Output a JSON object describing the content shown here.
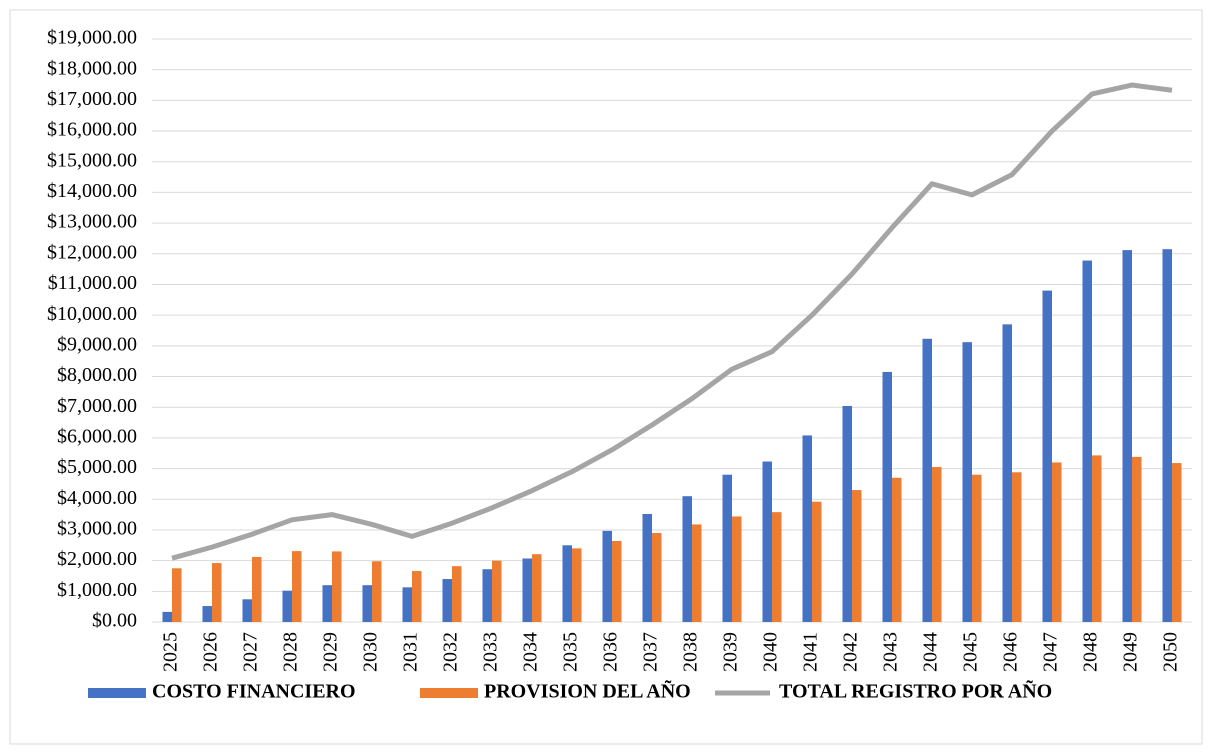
{
  "chart_data": {
    "type": "bar_line",
    "categories": [
      "2025",
      "2026",
      "2027",
      "2028",
      "2029",
      "2030",
      "2031",
      "2032",
      "2033",
      "2034",
      "2035",
      "2036",
      "2037",
      "2038",
      "2039",
      "2040",
      "2041",
      "2042",
      "2043",
      "2044",
      "2045",
      "2046",
      "2047",
      "2048",
      "2049",
      "2050"
    ],
    "series": [
      {
        "name": "COSTO FINANCIERO",
        "type": "bar",
        "color": "#4472c4",
        "values": [
          330,
          520,
          740,
          1020,
          1200,
          1200,
          1130,
          1400,
          1720,
          2070,
          2500,
          2970,
          3520,
          4100,
          4800,
          5230,
          6080,
          7040,
          8150,
          9230,
          9120,
          9700,
          10800,
          11780,
          12120,
          12150
        ]
      },
      {
        "name": "PROVISION DEL AÑO",
        "type": "bar",
        "color": "#ed7d31",
        "values": [
          1750,
          1920,
          2120,
          2310,
          2300,
          1980,
          1660,
          1820,
          2000,
          2210,
          2400,
          2640,
          2900,
          3180,
          3440,
          3580,
          3920,
          4300,
          4700,
          5050,
          4800,
          4880,
          5200,
          5430,
          5380,
          5180
        ]
      },
      {
        "name": "TOTAL REGISTRO POR AÑO",
        "type": "line",
        "color": "#a5a5a5",
        "values": [
          2080,
          2440,
          2860,
          3330,
          3500,
          3180,
          2790,
          3220,
          3720,
          4280,
          4900,
          5610,
          6420,
          7280,
          8240,
          8810,
          10000,
          11340,
          12850,
          14280,
          13920,
          14580,
          16000,
          17210,
          17500,
          17330
        ]
      }
    ],
    "ylim": [
      0,
      19000
    ],
    "yticks": [
      {
        "value": 0,
        "label": "$0.00"
      },
      {
        "value": 1000,
        "label": "$1,000.00"
      },
      {
        "value": 2000,
        "label": "$2,000.00"
      },
      {
        "value": 3000,
        "label": "$3,000.00"
      },
      {
        "value": 4000,
        "label": "$4,000.00"
      },
      {
        "value": 5000,
        "label": "$5,000.00"
      },
      {
        "value": 6000,
        "label": "$6,000.00"
      },
      {
        "value": 7000,
        "label": "$7,000.00"
      },
      {
        "value": 8000,
        "label": "$8,000.00"
      },
      {
        "value": 9000,
        "label": "$9,000.00"
      },
      {
        "value": 10000,
        "label": "$10,000.00"
      },
      {
        "value": 11000,
        "label": "$11,000.00"
      },
      {
        "value": 12000,
        "label": "$12,000.00"
      },
      {
        "value": 13000,
        "label": "$13,000.00"
      },
      {
        "value": 14000,
        "label": "$14,000.00"
      },
      {
        "value": 15000,
        "label": "$15,000.00"
      },
      {
        "value": 16000,
        "label": "$16,000.00"
      },
      {
        "value": 17000,
        "label": "$17,000.00"
      },
      {
        "value": 18000,
        "label": "$18,000.00"
      },
      {
        "value": 19000,
        "label": "$19,000.00"
      }
    ],
    "grid": true,
    "legend": "bottom"
  }
}
